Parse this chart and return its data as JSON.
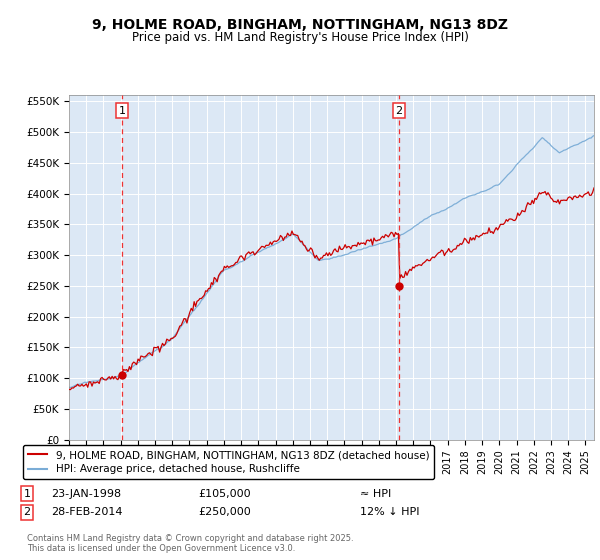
{
  "title": "9, HOLME ROAD, BINGHAM, NOTTINGHAM, NG13 8DZ",
  "subtitle": "Price paid vs. HM Land Registry's House Price Index (HPI)",
  "ylim": [
    0,
    560000
  ],
  "xlim_start": 1995.0,
  "xlim_end": 2025.5,
  "yticks": [
    0,
    50000,
    100000,
    150000,
    200000,
    250000,
    300000,
    350000,
    400000,
    450000,
    500000,
    550000
  ],
  "ytick_labels": [
    "£0",
    "£50K",
    "£100K",
    "£150K",
    "£200K",
    "£250K",
    "£300K",
    "£350K",
    "£400K",
    "£450K",
    "£500K",
    "£550K"
  ],
  "sale1_x": 1998.07,
  "sale1_y": 105000,
  "sale1_label": "1",
  "sale1_date": "23-JAN-1998",
  "sale1_price": "£105,000",
  "sale1_hpi": "≈ HPI",
  "sale2_x": 2014.17,
  "sale2_y": 250000,
  "sale2_label": "2",
  "sale2_date": "28-FEB-2014",
  "sale2_price": "£250,000",
  "sale2_hpi": "12% ↓ HPI",
  "line1_color": "#cc0000",
  "line2_color": "#7aacd6",
  "vline_color": "#ee3333",
  "background_color": "#dce8f5",
  "legend_line1": "9, HOLME ROAD, BINGHAM, NOTTINGHAM, NG13 8DZ (detached house)",
  "legend_line2": "HPI: Average price, detached house, Rushcliffe",
  "footer": "Contains HM Land Registry data © Crown copyright and database right 2025.\nThis data is licensed under the Open Government Licence v3.0."
}
